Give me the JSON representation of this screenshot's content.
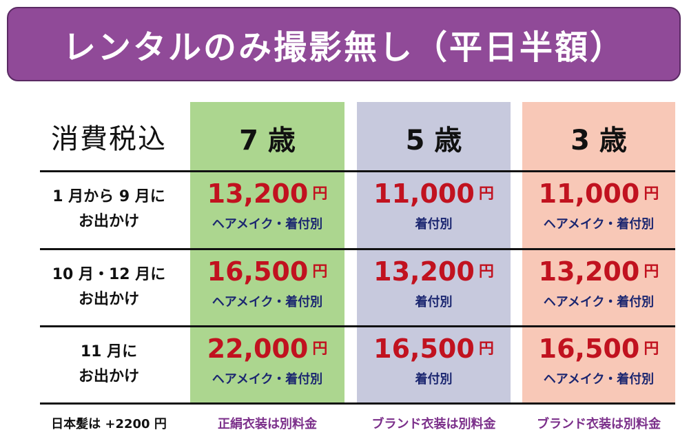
{
  "title": "レンタルのみ撮影無し（平日半額）",
  "header_label": "消費税込",
  "ages": [
    "7 歳",
    "5 歳",
    "3 歳"
  ],
  "rows": [
    {
      "label_line1": "1 月から 9 月に",
      "label_line2": "お出かけ",
      "cells": [
        {
          "price": "13,200",
          "yen": "円",
          "note": "ヘアメイク・着付別"
        },
        {
          "price": "11,000",
          "yen": "円",
          "note": "着付別"
        },
        {
          "price": "11,000",
          "yen": "円",
          "note": "ヘアメイク・着付別"
        }
      ]
    },
    {
      "label_line1": "10 月・12 月に",
      "label_line2": "お出かけ",
      "cells": [
        {
          "price": "16,500",
          "yen": "円",
          "note": "ヘアメイク・着付別"
        },
        {
          "price": "13,200",
          "yen": "円",
          "note": "着付別"
        },
        {
          "price": "13,200",
          "yen": "円",
          "note": "ヘアメイク・着付別"
        }
      ]
    },
    {
      "label_line1": "11 月に",
      "label_line2": "お出かけ",
      "cells": [
        {
          "price": "22,000",
          "yen": "円",
          "note": "ヘアメイク・着付別"
        },
        {
          "price": "16,500",
          "yen": "円",
          "note": "着付別"
        },
        {
          "price": "16,500",
          "yen": "円",
          "note": "ヘアメイク・着付別"
        }
      ]
    }
  ],
  "footer": {
    "note": "日本髪は +2200 円",
    "col7": "正絹衣装は別料金",
    "col5": "ブランド衣装は別料金",
    "col3": "ブランド衣装は別料金"
  },
  "colors": {
    "banner": "#904a98",
    "col7": "#acd68f",
    "col5": "#c7c9dd",
    "col3": "#f8c8b7",
    "price": "#c1121f",
    "note": "#1b2670",
    "footer_purple": "#7b2f8a"
  }
}
